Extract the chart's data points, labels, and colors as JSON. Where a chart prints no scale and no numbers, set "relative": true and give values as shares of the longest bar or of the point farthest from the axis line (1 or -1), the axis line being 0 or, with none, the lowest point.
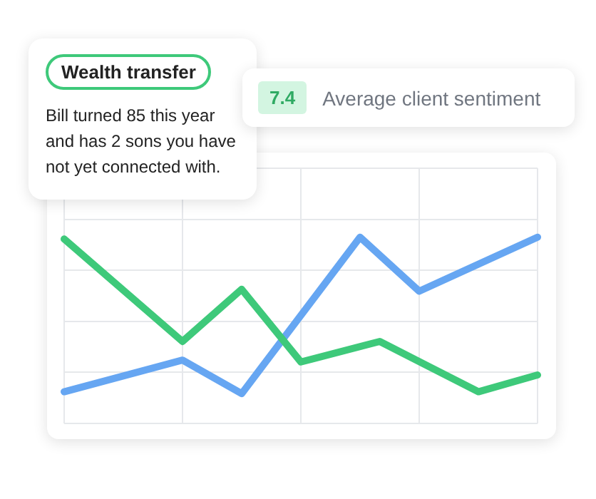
{
  "chart_data": {
    "type": "line",
    "relative": true,
    "grid": true,
    "legend": false,
    "marker": "none",
    "categories": [
      null,
      null,
      null,
      null,
      null,
      null,
      null,
      null,
      null,
      null,
      null,
      null,
      null,
      null,
      null,
      null,
      null,
      null,
      null,
      null,
      null,
      null,
      null,
      null,
      null
    ],
    "series": [
      {
        "color": "#3ec97a",
        "values": [
          0.99,
          null,
          null,
          null,
          null,
          null,
          0.44,
          null,
          null,
          0.72,
          null,
          null,
          0.33,
          null,
          null,
          null,
          0.44,
          null,
          null,
          null,
          null,
          0.17,
          null,
          null,
          0.26
        ]
      },
      {
        "color": "#66a6f2",
        "values": [
          0.17,
          null,
          null,
          null,
          null,
          null,
          0.34,
          null,
          null,
          0.16,
          null,
          null,
          null,
          null,
          null,
          1,
          null,
          null,
          0.71,
          null,
          null,
          null,
          null,
          null,
          1
        ]
      }
    ],
    "annotations": [
      "Wealth transfer",
      "Bill turned 85 this year and has 2 sons you have not yet connected with.",
      "7.4",
      "Average client sentiment"
    ]
  }
}
